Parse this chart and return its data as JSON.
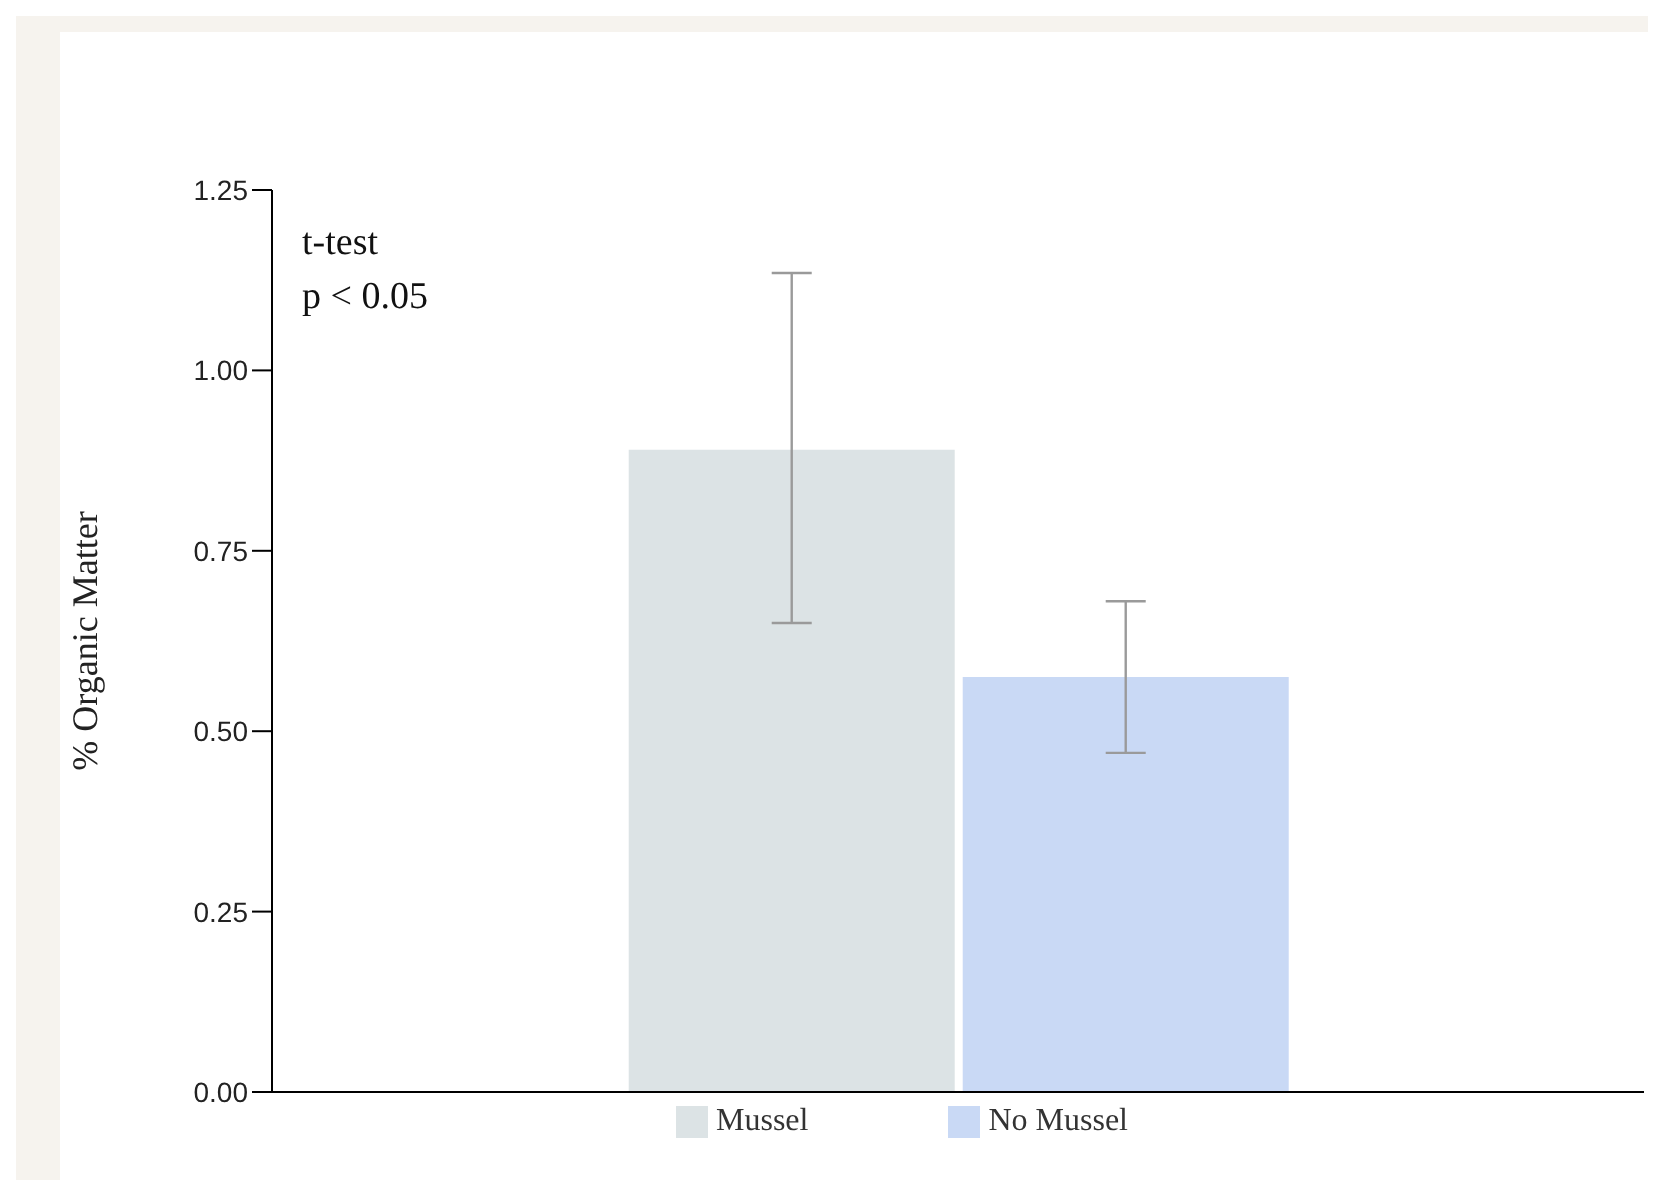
{
  "chart_data": {
    "type": "bar",
    "categories": [
      null
    ],
    "ylabel": "% Organic Matter",
    "series": [
      {
        "name": "Mussel",
        "color": "#dce3e5",
        "values": [
          0.89
        ],
        "errors": [
          [
            0.65,
            1.135
          ]
        ]
      },
      {
        "name": "No Mussel",
        "color": "#c9d9f5",
        "values": [
          0.575
        ],
        "errors": [
          [
            0.47,
            0.68
          ]
        ]
      }
    ],
    "ylim": [
      0,
      1.25
    ],
    "yticks": [
      {
        "value": 0,
        "label": "0.00"
      },
      {
        "value": 0.25,
        "label": "0.25"
      },
      {
        "value": 0.5,
        "label": "0.50"
      },
      {
        "value": 0.75,
        "label": "0.75"
      },
      {
        "value": 1,
        "label": "1.00"
      },
      {
        "value": 1.25,
        "label": "1.25"
      }
    ],
    "annotations": [
      "t-test",
      "p < 0.05"
    ],
    "grid": false,
    "legend": "bottom"
  }
}
